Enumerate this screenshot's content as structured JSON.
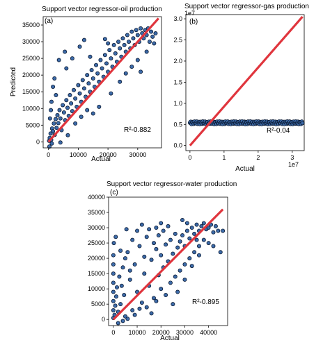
{
  "chart_data": [
    {
      "type": "scatter",
      "panel_label": "(a)",
      "title": "Support vector regressor-oil production",
      "xlabel": "Actual",
      "ylabel": "Predicted",
      "annotation": "R²-0.882",
      "xlim": [
        -1800,
        38000
      ],
      "ylim": [
        -1800,
        37500
      ],
      "xticks": [
        "0",
        "10000",
        "20000",
        "30000"
      ],
      "xtick_values": [
        0,
        10000,
        20000,
        30000
      ],
      "yticks": [
        "0",
        "5000",
        "10000",
        "15000",
        "20000",
        "25000",
        "30000",
        "35000"
      ],
      "ytick_values": [
        0,
        5000,
        10000,
        15000,
        20000,
        25000,
        30000,
        35000
      ],
      "ideal_line": [
        [
          0,
          0
        ],
        [
          37000,
          37000
        ]
      ],
      "points": [
        [
          200,
          300
        ],
        [
          400,
          1200
        ],
        [
          700,
          2500
        ],
        [
          900,
          600
        ],
        [
          1200,
          4000
        ],
        [
          1500,
          3200
        ],
        [
          1800,
          5500
        ],
        [
          2100,
          2100
        ],
        [
          2400,
          6800
        ],
        [
          2700,
          4200
        ],
        [
          3000,
          8000
        ],
        [
          3300,
          5600
        ],
        [
          3700,
          9500
        ],
        [
          4000,
          7000
        ],
        [
          4400,
          3500
        ],
        [
          4800,
          11000
        ],
        [
          5200,
          8800
        ],
        [
          5600,
          6500
        ],
        [
          6000,
          12500
        ],
        [
          6400,
          10200
        ],
        [
          6800,
          7800
        ],
        [
          7200,
          14000
        ],
        [
          7600,
          11500
        ],
        [
          8000,
          9200
        ],
        [
          8500,
          15500
        ],
        [
          9000,
          13000
        ],
        [
          9500,
          10500
        ],
        [
          10000,
          17000
        ],
        [
          10500,
          14500
        ],
        [
          11000,
          12000
        ],
        [
          11500,
          18500
        ],
        [
          12000,
          16000
        ],
        [
          12500,
          13500
        ],
        [
          13000,
          20000
        ],
        [
          13500,
          17500
        ],
        [
          14000,
          15000
        ],
        [
          14500,
          21500
        ],
        [
          15000,
          19000
        ],
        [
          15500,
          16500
        ],
        [
          16000,
          23000
        ],
        [
          16500,
          20500
        ],
        [
          17000,
          18000
        ],
        [
          17500,
          24500
        ],
        [
          18000,
          22000
        ],
        [
          18500,
          19500
        ],
        [
          19000,
          26000
        ],
        [
          19500,
          23500
        ],
        [
          20000,
          21000
        ],
        [
          20500,
          27500
        ],
        [
          21000,
          25000
        ],
        [
          21500,
          22500
        ],
        [
          22000,
          29000
        ],
        [
          22500,
          26500
        ],
        [
          23000,
          24000
        ],
        [
          23500,
          30000
        ],
        [
          24000,
          28000
        ],
        [
          24500,
          25500
        ],
        [
          25000,
          31000
        ],
        [
          25500,
          29000
        ],
        [
          26000,
          27000
        ],
        [
          26500,
          32000
        ],
        [
          27000,
          30000
        ],
        [
          27500,
          28000
        ],
        [
          28000,
          33000
        ],
        [
          28500,
          31000
        ],
        [
          29000,
          29000
        ],
        [
          29500,
          33500
        ],
        [
          30000,
          32000
        ],
        [
          30500,
          30000
        ],
        [
          31000,
          34000
        ],
        [
          31500,
          32500
        ],
        [
          32000,
          31000
        ],
        [
          32500,
          33500
        ],
        [
          33000,
          32000
        ],
        [
          33500,
          34000
        ],
        [
          34000,
          30000
        ],
        [
          34500,
          33000
        ],
        [
          35000,
          31500
        ],
        [
          35500,
          29500
        ],
        [
          36000,
          32500
        ],
        [
          5500,
          27000
        ],
        [
          3500,
          24500
        ],
        [
          2000,
          19000
        ],
        [
          1000,
          12000
        ],
        [
          1500,
          16500
        ],
        [
          2500,
          14000
        ],
        [
          6000,
          22000
        ],
        [
          8000,
          25000
        ],
        [
          10500,
          28500
        ],
        [
          12000,
          30500
        ],
        [
          19000,
          30800
        ],
        [
          20000,
          29500
        ],
        [
          14000,
          25500
        ],
        [
          15000,
          8500
        ],
        [
          17000,
          10500
        ],
        [
          21000,
          14500
        ],
        [
          24000,
          18000
        ],
        [
          26000,
          20500
        ],
        [
          28000,
          22500
        ],
        [
          30000,
          24500
        ],
        [
          33000,
          27000
        ],
        [
          31000,
          21000
        ],
        [
          500,
          7000
        ],
        [
          800,
          9500
        ],
        [
          300,
          -1400
        ],
        [
          1100,
          -500
        ],
        [
          4000,
          -200
        ],
        [
          6500,
          2000
        ],
        [
          9000,
          5500
        ],
        [
          11000,
          7500
        ],
        [
          13000,
          9500
        ]
      ]
    },
    {
      "type": "scatter",
      "panel_label": "(b)",
      "title": "Support vector regressor-gas production",
      "xlabel": "Actual",
      "ylabel": "",
      "annotation": "R²-0.04",
      "offset_label": "1e7",
      "x_offset_label": "1e7",
      "xlim": [
        -0.12,
        3.35
      ],
      "ylim": [
        -0.12,
        3.1
      ],
      "xticks": [
        "0",
        "1",
        "2",
        "3"
      ],
      "xtick_values": [
        0,
        1,
        2,
        3
      ],
      "yticks": [
        "0.0",
        "0.5",
        "1.0",
        "1.5",
        "2.0",
        "2.5",
        "3.0"
      ],
      "ytick_values": [
        0,
        0.5,
        1.0,
        1.5,
        2.0,
        2.5,
        3.0
      ],
      "ideal_line": [
        [
          0,
          0
        ],
        [
          3.3,
          3.05
        ]
      ],
      "band": {
        "x_from": 0.0,
        "x_to": 3.3,
        "y_center": 0.54,
        "y_spread": 0.04,
        "count": 150
      }
    },
    {
      "type": "scatter",
      "panel_label": "(c)",
      "title": "Support vector regressor-water production",
      "xlabel": "Actual",
      "ylabel": "",
      "annotation": "R²-0.895",
      "xlim": [
        -2000,
        48000
      ],
      "ylim": [
        -2000,
        40000
      ],
      "xticks": [
        "0",
        "10000",
        "20000",
        "30000",
        "40000"
      ],
      "xtick_values": [
        0,
        10000,
        20000,
        30000,
        40000
      ],
      "yticks": [
        "0",
        "5000",
        "10000",
        "15000",
        "20000",
        "25000",
        "30000",
        "35000",
        "40000"
      ],
      "ytick_values": [
        0,
        5000,
        10000,
        15000,
        20000,
        25000,
        30000,
        35000,
        40000
      ],
      "ideal_line": [
        [
          0,
          0
        ],
        [
          46000,
          36000
        ]
      ],
      "points": [
        [
          0,
          500
        ],
        [
          0,
          3000
        ],
        [
          0,
          6000
        ],
        [
          0,
          9000
        ],
        [
          0,
          12000
        ],
        [
          0,
          15000
        ],
        [
          0,
          18000
        ],
        [
          0,
          21000
        ],
        [
          200,
          25000
        ],
        [
          500,
          1500
        ],
        [
          800,
          4500
        ],
        [
          1200,
          7500
        ],
        [
          1500,
          10500
        ],
        [
          2000,
          2500
        ],
        [
          2500,
          14000
        ],
        [
          3000,
          5000
        ],
        [
          3500,
          11000
        ],
        [
          4000,
          17000
        ],
        [
          4500,
          8000
        ],
        [
          5000,
          1000
        ],
        [
          5500,
          29500
        ],
        [
          6000,
          22000
        ],
        [
          7000,
          13000
        ],
        [
          8000,
          3000
        ],
        [
          9000,
          18000
        ],
        [
          10000,
          9000
        ],
        [
          11000,
          24000
        ],
        [
          12000,
          5500
        ],
        [
          13000,
          15000
        ],
        [
          14000,
          27000
        ],
        [
          15000,
          11000
        ],
        [
          16000,
          19500
        ],
        [
          17000,
          7000
        ],
        [
          18000,
          23000
        ],
        [
          19000,
          14500
        ],
        [
          20000,
          21000
        ],
        [
          21000,
          17000
        ],
        [
          22000,
          24500
        ],
        [
          23000,
          19000
        ],
        [
          24000,
          26000
        ],
        [
          25000,
          21500
        ],
        [
          26000,
          28000
        ],
        [
          27000,
          23500
        ],
        [
          28000,
          25500
        ],
        [
          29000,
          27500
        ],
        [
          30000,
          24000
        ],
        [
          31000,
          29000
        ],
        [
          32000,
          26500
        ],
        [
          33000,
          30000
        ],
        [
          34000,
          28000
        ],
        [
          35000,
          31000
        ],
        [
          36000,
          29000
        ],
        [
          37000,
          30500
        ],
        [
          38000,
          31500
        ],
        [
          39000,
          29500
        ],
        [
          40000,
          30000
        ],
        [
          41000,
          31000
        ],
        [
          42000,
          28500
        ],
        [
          43000,
          30500
        ],
        [
          44000,
          29000
        ],
        [
          45000,
          22000
        ],
        [
          46000,
          29000
        ],
        [
          5000,
          20000
        ],
        [
          8000,
          26000
        ],
        [
          10000,
          29000
        ],
        [
          12000,
          31000
        ],
        [
          15000,
          29500
        ],
        [
          18000,
          30000
        ],
        [
          20000,
          31500
        ],
        [
          14000,
          4000
        ],
        [
          16000,
          2000
        ],
        [
          18000,
          6000
        ],
        [
          20000,
          10000
        ],
        [
          22000,
          8000
        ],
        [
          24000,
          12000
        ],
        [
          26000,
          14000
        ],
        [
          28000,
          16000
        ],
        [
          30000,
          18000
        ],
        [
          32000,
          20000
        ],
        [
          34000,
          22000
        ],
        [
          36000,
          24000
        ],
        [
          38000,
          26000
        ],
        [
          25000,
          5000
        ],
        [
          27000,
          9000
        ],
        [
          30000,
          13000
        ],
        [
          33000,
          17500
        ],
        [
          36000,
          21000
        ],
        [
          2000,
          -1200
        ],
        [
          4000,
          -500
        ],
        [
          6000,
          200
        ],
        [
          1000,
          27000
        ],
        [
          3000,
          22500
        ],
        [
          7000,
          16000
        ],
        [
          9000,
          1500
        ],
        [
          11000,
          3500
        ],
        [
          13000,
          20500
        ],
        [
          17000,
          25000
        ],
        [
          19000,
          27500
        ],
        [
          21000,
          29000
        ],
        [
          23000,
          30500
        ],
        [
          31000,
          31500
        ],
        [
          29000,
          32500
        ],
        [
          35000,
          26000
        ],
        [
          40000,
          25000
        ],
        [
          42000,
          24000
        ]
      ]
    }
  ]
}
